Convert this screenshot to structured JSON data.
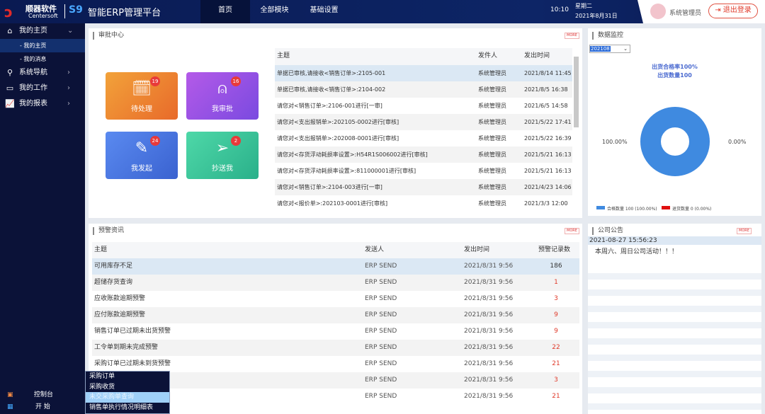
{
  "header": {
    "brand_cn": "顺器软件",
    "brand_en": "Centersoft",
    "product_mark": "S9",
    "title": "智能ERP管理平台",
    "nav": [
      {
        "label": "首页",
        "active": true
      },
      {
        "label": "全部模块"
      },
      {
        "label": "基础设置"
      }
    ],
    "time": "10:10",
    "weekday": "星期二",
    "date": "2021年8月31日",
    "user": "系统管理员",
    "logout": "退出登录"
  },
  "sidebar": {
    "items": [
      {
        "label": "我的主页",
        "icon": "home-icon",
        "expanded": true,
        "children": [
          {
            "label": "- 我的主页",
            "active": true
          },
          {
            "label": "- 我的消息"
          }
        ]
      },
      {
        "label": "系统导航",
        "icon": "navigation-icon"
      },
      {
        "label": "我的工作",
        "icon": "briefcase-icon"
      },
      {
        "label": "我的报表",
        "icon": "chart-icon"
      }
    ],
    "bottom": [
      {
        "label": "控制台",
        "icon": "monitor-icon"
      },
      {
        "label": "开 始",
        "icon": "apps-icon"
      }
    ]
  },
  "popup_menu": [
    "采购订单",
    "采购收货",
    "未交采购单查询",
    "销售单执行情况明细表"
  ],
  "approval": {
    "title": "审批中心",
    "more": "MORE",
    "tiles": [
      {
        "label": "待处理",
        "count": "19",
        "color": "#f08a3a"
      },
      {
        "label": "我审批",
        "count": "16",
        "color": "#a35ae8"
      },
      {
        "label": "我发起",
        "count": "24",
        "color": "#4a7ae0"
      },
      {
        "label": "抄送我",
        "count": "2",
        "color": "#3cc49a"
      }
    ],
    "columns": [
      "主题",
      "发件人",
      "发出时间"
    ],
    "rows": [
      [
        "单据已审核,请接收<销售订单>:2105-001",
        "系统管理员",
        "2021/8/14 11:45"
      ],
      [
        "单据已审核,请接收<销售订单>:2104-002",
        "系统管理员",
        "2021/8/5 16:38"
      ],
      [
        "请您对<销售订单>:2106-001进行[一审]",
        "系统管理员",
        "2021/6/5 14:58"
      ],
      [
        "请您对<支出报销单>:202105-0002进行[审核]",
        "系统管理员",
        "2021/5/22 17:41"
      ],
      [
        "请您对<支出报销单>:202008-0001进行[审核]",
        "系统管理员",
        "2021/5/22 16:39"
      ],
      [
        "请您对<存货浮动耗损率设置>:H54R1S006002进行[审核]",
        "系统管理员",
        "2021/5/21 16:13"
      ],
      [
        "请您对<存货浮动耗损率设置>:811000001进行[审核]",
        "系统管理员",
        "2021/5/21 16:13"
      ],
      [
        "请您对<销售订单>:2104-003进行[一审]",
        "系统管理员",
        "2021/4/23 14:06"
      ],
      [
        "请您对<报价单>:202103-0001进行[审核]",
        "系统管理员",
        "2021/3/3 12:00"
      ]
    ]
  },
  "monitor": {
    "title": "数据监控",
    "period": "202108",
    "line1": "出货合格率100%",
    "line2": "出货数量100",
    "chart_data": {
      "type": "pie",
      "donut": true,
      "categories": [
        "合格数量",
        "退货数量"
      ],
      "values": [
        100,
        0
      ],
      "colors": [
        "#3f8ae0",
        "#e01010"
      ],
      "data_labels": [
        "100.00%",
        "0.00%"
      ],
      "legend": [
        "合格数量 100 (100.00%)",
        "退货数量 0 (0.00%)"
      ],
      "legend_position": "bottom"
    }
  },
  "warning": {
    "title": "预警资讯",
    "more": "MORE",
    "columns": [
      "主题",
      "发送人",
      "发出时间",
      "预警记录数"
    ],
    "rows": [
      [
        "可用库存不足",
        "ERP SEND",
        "2021/8/31 9:56",
        "186"
      ],
      [
        "超储存货查询",
        "ERP SEND",
        "2021/8/31 9:56",
        "1"
      ],
      [
        "应收账款逾期预警",
        "ERP SEND",
        "2021/8/31 9:56",
        "3"
      ],
      [
        "应付账款逾期预警",
        "ERP SEND",
        "2021/8/31 9:56",
        "9"
      ],
      [
        "销售订单已过期未出货预警",
        "ERP SEND",
        "2021/8/31 9:56",
        "9"
      ],
      [
        "工令单到期未完成预警",
        "ERP SEND",
        "2021/8/31 9:56",
        "22"
      ],
      [
        "采购订单已过期未到货预警",
        "ERP SEND",
        "2021/8/31 9:56",
        "21"
      ],
      [
        "",
        "ERP SEND",
        "2021/8/31 9:56",
        "3"
      ],
      [
        "",
        "ERP SEND",
        "2021/8/31 9:56",
        "21"
      ]
    ]
  },
  "notice": {
    "title": "公司公告",
    "more": "MORE",
    "items": [
      {
        "time": "2021-08-27 15:56:23",
        "text": "本周六、周日公司活动！！！"
      }
    ]
  }
}
